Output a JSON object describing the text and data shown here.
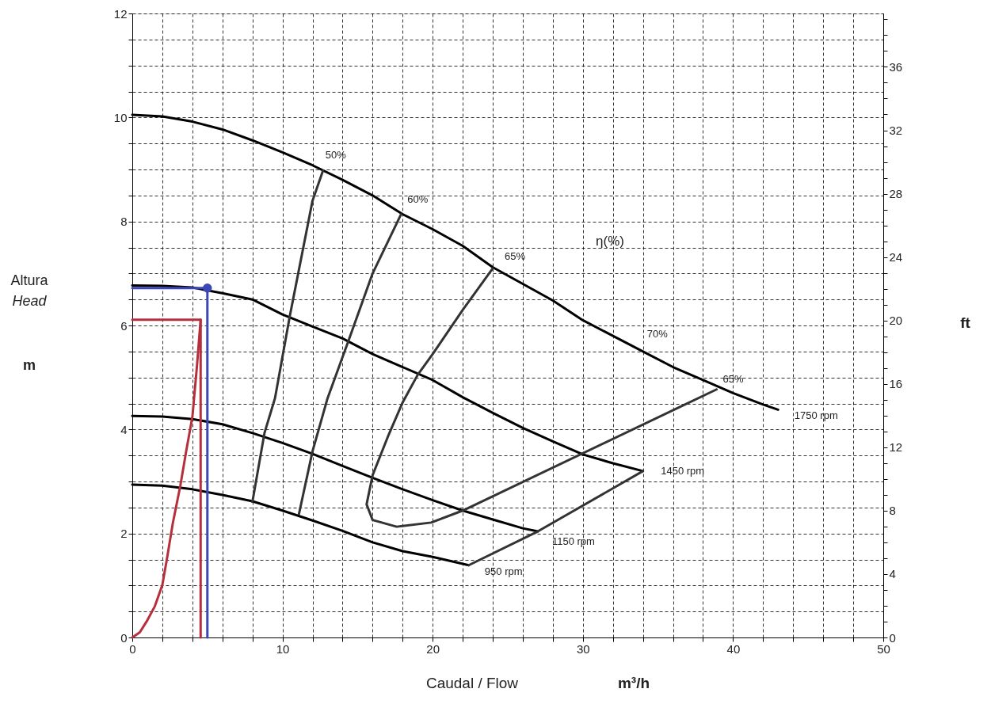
{
  "chart_data": {
    "type": "line",
    "xlabel": "Caudal / Flow\nm³/h",
    "ylabel": "Altura\nHead\nm",
    "y2label": "ft",
    "xlim": [
      0,
      50
    ],
    "ylim": [
      0,
      12
    ],
    "y2lim": [
      0,
      39.37
    ],
    "xticks": [
      0,
      {
        "value": 2,
        "label": null
      },
      {
        "value": 4,
        "label": null
      },
      {
        "value": 6,
        "label": null
      },
      {
        "value": 8,
        "label": null
      },
      10,
      {
        "value": 12,
        "label": null
      },
      {
        "value": 14,
        "label": null
      },
      {
        "value": 16,
        "label": null
      },
      {
        "value": 18,
        "label": null
      },
      20,
      {
        "value": 22,
        "label": null
      },
      {
        "value": 24,
        "label": null
      },
      {
        "value": 26,
        "label": null
      },
      {
        "value": 28,
        "label": null
      },
      30,
      {
        "value": 32,
        "label": null
      },
      {
        "value": 34,
        "label": null
      },
      {
        "value": 36,
        "label": null
      },
      {
        "value": 38,
        "label": null
      },
      40,
      {
        "value": 42,
        "label": null
      },
      {
        "value": 44,
        "label": null
      },
      {
        "value": 46,
        "label": null
      },
      {
        "value": 48,
        "label": null
      },
      50
    ],
    "yticks": [
      0,
      {
        "value": 0.5,
        "label": null
      },
      {
        "value": 1,
        "label": null
      },
      {
        "value": 1.5,
        "label": null
      },
      2,
      {
        "value": 2.5,
        "label": null
      },
      {
        "value": 3,
        "label": null
      },
      {
        "value": 3.5,
        "label": null
      },
      4,
      {
        "value": 4.5,
        "label": null
      },
      {
        "value": 5,
        "label": null
      },
      {
        "value": 5.5,
        "label": null
      },
      6,
      {
        "value": 6.5,
        "label": null
      },
      {
        "value": 7,
        "label": null
      },
      {
        "value": 7.5,
        "label": null
      },
      8,
      {
        "value": 8.5,
        "label": null
      },
      {
        "value": 9,
        "label": null
      },
      {
        "value": 9.5,
        "label": null
      },
      10,
      {
        "value": 10.5,
        "label": null
      },
      {
        "value": 11,
        "label": null
      },
      {
        "value": 11.5,
        "label": null
      },
      12
    ],
    "y2ticks": [
      0,
      {
        "value": 1,
        "label": null
      },
      {
        "value": 2,
        "label": null
      },
      {
        "value": 3,
        "label": null
      },
      4,
      {
        "value": 5,
        "label": null
      },
      {
        "value": 6,
        "label": null
      },
      {
        "value": 7,
        "label": null
      },
      8,
      {
        "value": 9,
        "label": null
      },
      {
        "value": 10,
        "label": null
      },
      {
        "value": 11,
        "label": null
      },
      12,
      {
        "value": 13,
        "label": null
      },
      {
        "value": 14,
        "label": null
      },
      {
        "value": 15,
        "label": null
      },
      16,
      {
        "value": 17,
        "label": null
      },
      {
        "value": 18,
        "label": null
      },
      {
        "value": 19,
        "label": null
      },
      20,
      {
        "value": 21,
        "label": null
      },
      {
        "value": 22,
        "label": null
      },
      {
        "value": 23,
        "label": null
      },
      24,
      {
        "value": 25,
        "label": null
      },
      {
        "value": 26,
        "label": null
      },
      {
        "value": 27,
        "label": null
      },
      28,
      {
        "value": 29,
        "label": null
      },
      {
        "value": 30,
        "label": null
      },
      {
        "value": 31,
        "label": null
      },
      32,
      {
        "value": 33,
        "label": null
      },
      {
        "value": 34,
        "label": null
      },
      {
        "value": 35,
        "label": null
      },
      36,
      {
        "value": 37,
        "label": null
      },
      {
        "value": 38,
        "label": null
      },
      {
        "value": 39,
        "label": null
      }
    ],
    "grid": true,
    "marker": "none",
    "line_style": "solid",
    "series": [
      {
        "color": "#000000",
        "x": [
          0,
          2,
          4,
          6,
          8,
          10,
          12,
          14,
          16,
          18,
          20,
          22,
          24,
          26,
          28,
          30,
          32,
          34,
          36,
          38,
          40,
          42,
          43
        ],
        "values": [
          10.05,
          10.02,
          9.92,
          9.77,
          9.56,
          9.33,
          9.08,
          8.8,
          8.5,
          8.14,
          7.85,
          7.53,
          7.12,
          6.8,
          6.48,
          6.1,
          5.8,
          5.5,
          5.2,
          4.95,
          4.7,
          4.48,
          4.38
        ]
      },
      {
        "color": "#000000",
        "x": [
          0,
          2,
          4,
          6,
          8,
          10,
          12,
          14,
          16,
          18,
          20,
          22,
          24,
          26,
          28,
          30,
          32,
          34
        ],
        "values": [
          6.77,
          6.76,
          6.73,
          6.62,
          6.5,
          6.21,
          5.98,
          5.75,
          5.45,
          5.2,
          4.95,
          4.62,
          4.32,
          4.03,
          3.77,
          3.52,
          3.35,
          3.2
        ]
      },
      {
        "color": "#000000",
        "x": [
          0,
          2,
          4,
          6,
          8,
          10,
          12,
          14,
          16,
          18,
          20,
          22,
          24,
          26,
          27
        ],
        "values": [
          4.26,
          4.25,
          4.2,
          4.1,
          3.93,
          3.74,
          3.53,
          3.3,
          3.07,
          2.85,
          2.64,
          2.44,
          2.27,
          2.1,
          2.04
        ]
      },
      {
        "color": "#000000",
        "x": [
          0,
          2,
          4,
          6,
          8,
          10,
          12,
          14,
          16,
          18,
          20,
          22.4
        ],
        "values": [
          2.94,
          2.92,
          2.85,
          2.74,
          2.62,
          2.44,
          2.25,
          2.05,
          1.83,
          1.66,
          1.55,
          1.39
        ]
      },
      {
        "color": "#333333",
        "x": [
          12.7,
          12.0,
          10.5,
          9.5,
          8.8,
          8.0
        ],
        "values": [
          8.98,
          8.4,
          6.2,
          4.6,
          3.93,
          2.61
        ]
      },
      {
        "color": "#333333",
        "x": [
          17.9,
          16.0,
          14.4,
          13.0,
          12.0,
          11.1
        ],
        "values": [
          8.14,
          7.0,
          5.71,
          4.6,
          3.58,
          2.38
        ]
      },
      {
        "color": "#333333",
        "x": [
          24.0,
          22,
          20,
          19,
          18,
          17,
          16,
          15.6,
          16,
          17.6,
          19.9,
          22,
          38.9
        ],
        "values": [
          7.1,
          6.3,
          5.45,
          5.05,
          4.52,
          3.85,
          3.12,
          2.56,
          2.26,
          2.13,
          2.21,
          2.44,
          4.77
        ]
      },
      {
        "color": "#333333",
        "x": [
          22.4,
          27,
          34
        ],
        "values": [
          1.39,
          2.04,
          3.2
        ]
      },
      {
        "color": "#b5303c",
        "x": [
          0,
          0.5,
          1.0,
          1.5,
          2.0,
          2.3,
          2.7,
          3.2,
          3.6,
          4.0,
          4.3,
          4.55
        ],
        "values": [
          0,
          0.1,
          0.33,
          0.6,
          1.01,
          1.5,
          2.2,
          2.92,
          3.6,
          4.24,
          5.2,
          6.11
        ]
      },
      {
        "color": "#b5303c",
        "x": [
          0,
          4.55,
          4.55
        ],
        "values": [
          6.11,
          6.11,
          0
        ]
      },
      {
        "color": "#3c46b4",
        "x": [
          0,
          5.0,
          5.0
        ],
        "values": [
          6.72,
          6.72,
          0
        ]
      },
      {
        "type": "scatter",
        "marker": "circle",
        "color": "#3c46b4",
        "x": [
          5.0
        ],
        "values": [
          6.72
        ]
      }
    ],
    "annotations": [
      {
        "text": "50%",
        "x": 12.7,
        "y": 8.98
      },
      {
        "text": "60%",
        "x": 17.9,
        "y": 8.14
      },
      {
        "text": "65%",
        "x": 24.0,
        "y": 7.1
      },
      "η(%)",
      {
        "text": "70%",
        "x": 33.8,
        "y": 5.56
      },
      {
        "text": "65%",
        "x": 38.9,
        "y": 4.77
      },
      {
        "text": "1750 rpm",
        "x": 43,
        "y": 4.38
      },
      {
        "text": "1450 rpm",
        "x": 34,
        "y": 3.2
      },
      {
        "text": "1150 rpm",
        "x": 27,
        "y": 2.04
      },
      {
        "text": "950 rpm",
        "x": 22.4,
        "y": 1.39
      }
    ]
  }
}
